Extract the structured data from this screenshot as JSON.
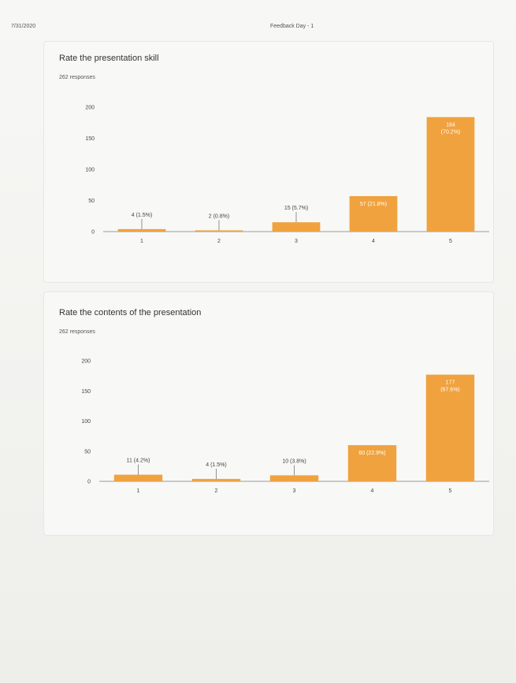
{
  "header": {
    "date": "7/31/2020",
    "form_title": "Feedback Day - 1"
  },
  "colors": {
    "bar": "#f0a23e",
    "axis": "#9a9a9a",
    "text": "#444444"
  },
  "questions": [
    {
      "title": "Rate the presentation skill",
      "responses": "262 responses"
    },
    {
      "title": "Rate the contents of the presentation",
      "responses": "262 responses"
    }
  ],
  "chart_data": [
    {
      "type": "bar",
      "title": "Rate the presentation skill",
      "categories": [
        "1",
        "2",
        "3",
        "4",
        "5"
      ],
      "values": [
        4,
        2,
        15,
        57,
        184
      ],
      "labels": [
        "4 (1.5%)",
        "2 (0.8%)",
        "15 (5.7%)",
        "57 (21.8%)",
        "184 (70.2%)"
      ],
      "yticks": [
        0,
        50,
        100,
        150,
        200
      ],
      "ylim": [
        0,
        200
      ],
      "xlabel": "",
      "ylabel": ""
    },
    {
      "type": "bar",
      "title": "Rate the contents of the presentation",
      "categories": [
        "1",
        "2",
        "3",
        "4",
        "5"
      ],
      "values": [
        11,
        4,
        10,
        60,
        177
      ],
      "labels": [
        "11 (4.2%)",
        "4 (1.5%)",
        "10 (3.8%)",
        "60 (22.9%)",
        "177 (67.6%)"
      ],
      "yticks": [
        0,
        50,
        100,
        150,
        200
      ],
      "ylim": [
        0,
        200
      ],
      "xlabel": "",
      "ylabel": ""
    }
  ]
}
